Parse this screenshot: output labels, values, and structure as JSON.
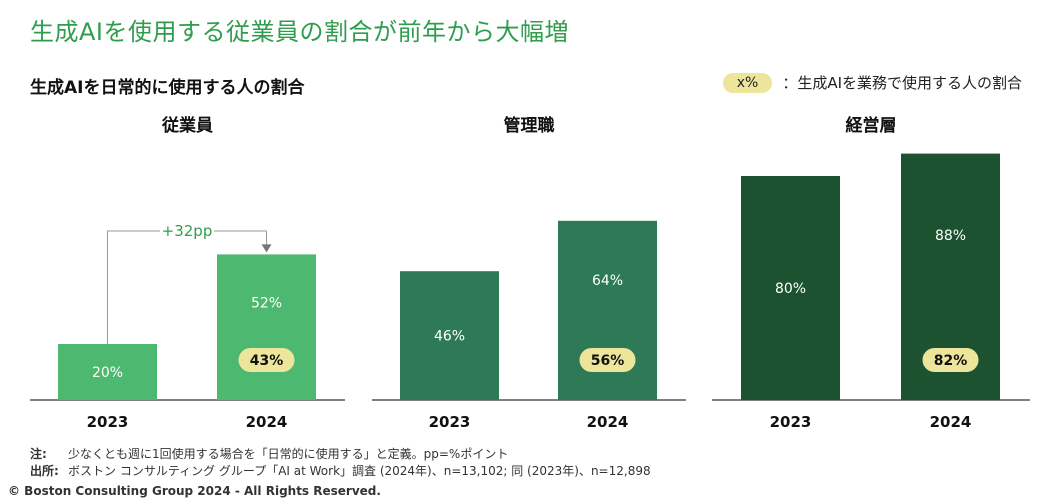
{
  "page": {
    "title": "生成AIを使用する従業員の割合が前年から大幅増",
    "subtitle": "生成AIを日常的に使用する人の割合",
    "legend": {
      "pill": "x%",
      "text": "：生成AIを業務で使用する人の割合"
    },
    "colors": {
      "title": "#2f9d4e",
      "employees": "#4db870",
      "managers": "#2e7a56",
      "executives": "#1c5230",
      "pill": "#ede59a",
      "axis": "#555555"
    },
    "notes": [
      {
        "label": "注:",
        "text": "少なくとも週に1回使用する場合を「日常的に使用する」と定義。pp=%ポイント"
      },
      {
        "label": "出所:",
        "text": "ボストン コンサルティング グループ「AI at Work」調査 (2024年)、n=13,102; 同 (2023年)、n=12,898"
      }
    ],
    "copyright": "© Boston Consulting Group 2024 - All Rights Reserved."
  },
  "chart_data": [
    {
      "type": "bar",
      "title": "従業員",
      "categories": [
        "2023",
        "2024"
      ],
      "values": [
        20,
        52
      ],
      "value_labels": [
        "20%",
        "52%"
      ],
      "work_use": [
        null,
        43
      ],
      "work_use_labels": [
        null,
        "43%"
      ],
      "annotation": "+32pp",
      "color": "#4db870",
      "ylim": [
        0,
        100
      ]
    },
    {
      "type": "bar",
      "title": "管理職",
      "categories": [
        "2023",
        "2024"
      ],
      "values": [
        46,
        64
      ],
      "value_labels": [
        "46%",
        "64%"
      ],
      "work_use": [
        null,
        56
      ],
      "work_use_labels": [
        null,
        "56%"
      ],
      "color": "#2e7a56",
      "ylim": [
        0,
        100
      ]
    },
    {
      "type": "bar",
      "title": "経営層",
      "categories": [
        "2023",
        "2024"
      ],
      "values": [
        80,
        88
      ],
      "value_labels": [
        "80%",
        "88%"
      ],
      "work_use": [
        null,
        82
      ],
      "work_use_labels": [
        null,
        "82%"
      ],
      "color": "#1c5230",
      "ylim": [
        0,
        100
      ]
    }
  ]
}
